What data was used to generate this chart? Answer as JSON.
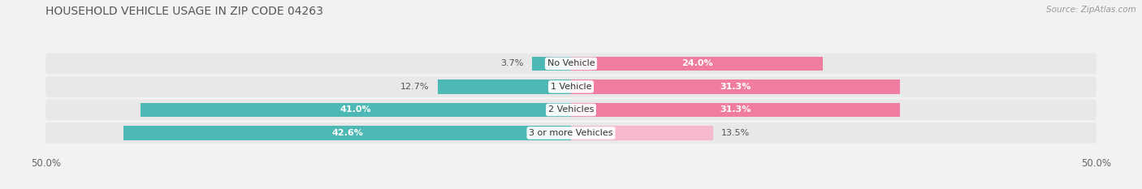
{
  "title": "HOUSEHOLD VEHICLE USAGE IN ZIP CODE 04263",
  "source": "Source: ZipAtlas.com",
  "categories": [
    "No Vehicle",
    "1 Vehicle",
    "2 Vehicles",
    "3 or more Vehicles"
  ],
  "owner_values": [
    3.7,
    12.7,
    41.0,
    42.6
  ],
  "renter_values": [
    24.0,
    31.3,
    31.3,
    13.5
  ],
  "owner_color": "#4db8b4",
  "renter_color": "#f07ca0",
  "renter_color_light": "#f5b8cf",
  "bar_height": 0.62,
  "xlim": [
    -50,
    50
  ],
  "background_color": "#f2f2f2",
  "strip_color": "#e8e8e8",
  "title_fontsize": 10,
  "label_fontsize": 8,
  "tick_fontsize": 8.5,
  "source_fontsize": 7.5
}
